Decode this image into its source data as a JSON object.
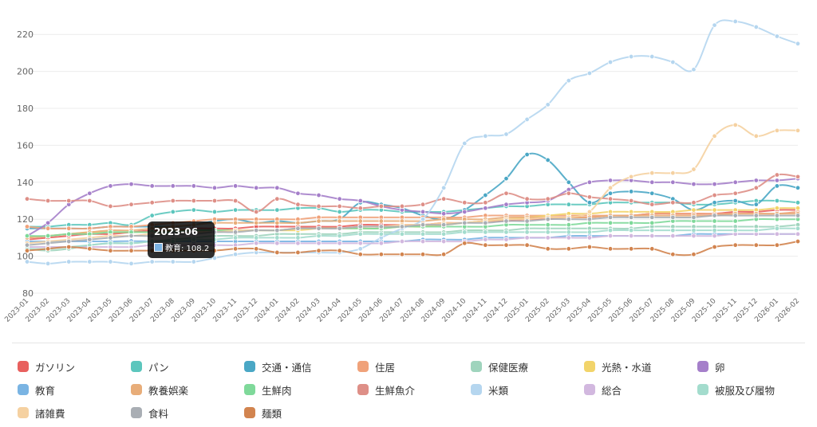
{
  "chart_data": {
    "type": "line",
    "title": "",
    "xlabel": "",
    "ylabel": "",
    "ylim": [
      80,
      230
    ],
    "yticks": [
      80,
      100,
      120,
      140,
      160,
      180,
      200,
      220
    ],
    "grid": true,
    "legend_position": "bottom",
    "x": [
      "2023-01",
      "2023-02",
      "2023-03",
      "2023-04",
      "2023-05",
      "2023-06",
      "2023-07",
      "2023-08",
      "2023-09",
      "2023-10",
      "2023-11",
      "2023-12",
      "2024-01",
      "2024-02",
      "2024-03",
      "2024-04",
      "2024-05",
      "2024-06",
      "2024-07",
      "2024-08",
      "2024-09",
      "2024-10",
      "2024-11",
      "2024-12",
      "2025-01",
      "2025-02",
      "2025-03",
      "2025-04",
      "2025-05",
      "2025-06",
      "2025-07",
      "2025-08",
      "2025-09",
      "2025-10",
      "2025-11",
      "2025-12",
      "2026-01",
      "2026-02"
    ],
    "series": [
      {
        "name": "ガソリン",
        "color": "#e8605e",
        "values": [
          109,
          110,
          111,
          112,
          112,
          113,
          114,
          114,
          115,
          115,
          115,
          116,
          116,
          116,
          116,
          116,
          117,
          117,
          117,
          117,
          118,
          118,
          119,
          119,
          120,
          120,
          121,
          121,
          122,
          122,
          123,
          123,
          123,
          123,
          124,
          124,
          125,
          125
        ]
      },
      {
        "name": "パン",
        "color": "#5cc6bd",
        "values": [
          116,
          116,
          117,
          117,
          118,
          117,
          122,
          124,
          125,
          124,
          125,
          125,
          125,
          126,
          126,
          124,
          125,
          125,
          124,
          124,
          124,
          125,
          126,
          127,
          127,
          128,
          128,
          128,
          129,
          129,
          129,
          129,
          128,
          128,
          129,
          130,
          130,
          129
        ]
      },
      {
        "name": "交通・通信",
        "color": "#4aa7c5",
        "values": [
          115,
          115,
          115,
          115,
          116,
          116,
          116,
          116,
          117,
          119,
          120,
          118,
          119,
          118,
          119,
          120,
          129,
          128,
          126,
          122,
          120,
          125,
          133,
          142,
          155,
          152,
          140,
          129,
          134,
          135,
          134,
          131,
          125,
          129,
          130,
          128,
          138,
          137
        ]
      },
      {
        "name": "住居",
        "color": "#f0a27a",
        "values": [
          116,
          115,
          115,
          115,
          116,
          116,
          117,
          118,
          119,
          120,
          120,
          120,
          120,
          120,
          121,
          121,
          121,
          121,
          121,
          121,
          121,
          121,
          122,
          122,
          122,
          122,
          122,
          122,
          122,
          122,
          123,
          123,
          123,
          123,
          123,
          123,
          123,
          124
        ]
      },
      {
        "name": "保健医療",
        "color": "#9fd4bd",
        "values": [
          104,
          103,
          104,
          106,
          107,
          107,
          108,
          109,
          110,
          111,
          111,
          111,
          112,
          112,
          112,
          112,
          113,
          113,
          113,
          113,
          113,
          114,
          114,
          114,
          115,
          115,
          115,
          115,
          115,
          115,
          116,
          116,
          116,
          116,
          116,
          116,
          116,
          117
        ]
      },
      {
        "name": "光熱・水道",
        "color": "#f2d46a",
        "values": [
          110,
          111,
          112,
          113,
          113,
          113,
          113,
          114,
          114,
          114,
          114,
          114,
          114,
          114,
          115,
          115,
          115,
          115,
          116,
          116,
          117,
          118,
          119,
          120,
          121,
          122,
          123,
          123,
          124,
          124,
          124,
          124,
          125,
          125,
          125,
          125,
          126,
          126
        ]
      },
      {
        "name": "卵",
        "color": "#a57fca",
        "values": [
          111,
          118,
          128,
          134,
          138,
          139,
          138,
          138,
          138,
          137,
          138,
          137,
          137,
          134,
          133,
          131,
          130,
          127,
          125,
          124,
          123,
          124,
          126,
          128,
          129,
          130,
          136,
          140,
          141,
          141,
          140,
          140,
          139,
          139,
          140,
          141,
          141,
          142
        ]
      },
      {
        "name": "教育",
        "color": "#7ab4e3",
        "values": [
          108,
          108,
          108,
          108,
          108,
          108.2,
          108,
          108,
          108,
          108,
          108,
          108,
          108,
          108,
          108,
          108,
          108,
          108,
          108,
          109,
          109,
          109,
          110,
          110,
          110,
          110,
          111,
          111,
          111,
          111,
          111,
          111,
          112,
          112,
          112,
          112,
          112,
          112
        ]
      },
      {
        "name": "教養娯楽",
        "color": "#e8ad79",
        "values": [
          110,
          111,
          112,
          113,
          114,
          114,
          115,
          116,
          117,
          118,
          118,
          118,
          118,
          118,
          119,
          119,
          119,
          119,
          119,
          119,
          120,
          120,
          120,
          121,
          121,
          121,
          121,
          121,
          122,
          122,
          122,
          122,
          122,
          122,
          123,
          123,
          123,
          123
        ]
      },
      {
        "name": "生鮮肉",
        "color": "#7fd99a",
        "values": [
          111,
          111,
          112,
          112,
          113,
          113,
          113,
          113,
          114,
          114,
          114,
          114,
          114,
          115,
          115,
          115,
          115,
          115,
          116,
          116,
          116,
          116,
          116,
          117,
          117,
          117,
          117,
          118,
          118,
          118,
          118,
          119,
          119,
          119,
          119,
          120,
          120,
          120
        ]
      },
      {
        "name": "生鮮魚介",
        "color": "#de8f87",
        "values": [
          131,
          130,
          130,
          130,
          127,
          128,
          129,
          130,
          130,
          130,
          130,
          124,
          131,
          128,
          127,
          127,
          126,
          127,
          127,
          128,
          131,
          129,
          129,
          134,
          131,
          131,
          134,
          132,
          131,
          130,
          128,
          129,
          129,
          133,
          134,
          137,
          144,
          143
        ]
      },
      {
        "name": "米類",
        "color": "#b5d6ef",
        "values": [
          97,
          96,
          97,
          97,
          97,
          96,
          97,
          97,
          97,
          99,
          101,
          102,
          102,
          102,
          102,
          102,
          104,
          110,
          115,
          120,
          137,
          161,
          165,
          166,
          174,
          182,
          195,
          199,
          205,
          208,
          208,
          205,
          201,
          225,
          227,
          224,
          219,
          215
        ]
      },
      {
        "name": "総合",
        "color": "#d2b8df",
        "values": [
          105,
          105,
          105,
          105,
          105,
          105,
          106,
          106,
          106,
          106,
          106,
          107,
          107,
          107,
          107,
          107,
          107,
          107,
          108,
          108,
          108,
          108,
          109,
          109,
          110,
          110,
          110,
          110,
          111,
          111,
          111,
          111,
          111,
          111,
          112,
          112,
          112,
          112
        ]
      },
      {
        "name": "被服及び履物",
        "color": "#a3dccd",
        "values": [
          104,
          104,
          105,
          106,
          107,
          107,
          108,
          108,
          109,
          109,
          110,
          110,
          110,
          110,
          111,
          111,
          112,
          112,
          112,
          112,
          112,
          113,
          113,
          113,
          113,
          113,
          113,
          113,
          114,
          114,
          114,
          114,
          114,
          114,
          114,
          114,
          115,
          115
        ]
      },
      {
        "name": "諸雑費",
        "color": "#f5d1a1",
        "values": [
          107,
          108,
          109,
          110,
          111,
          111,
          112,
          112,
          113,
          113,
          114,
          114,
          114,
          115,
          115,
          115,
          116,
          116,
          117,
          117,
          118,
          118,
          119,
          120,
          120,
          121,
          121,
          124,
          137,
          143,
          145,
          145,
          147,
          165,
          171,
          165,
          168,
          168
        ]
      },
      {
        "name": "食料",
        "color": "#a9aeb4",
        "values": [
          106,
          107,
          108,
          109,
          110,
          111,
          111,
          112,
          112,
          113,
          113,
          114,
          114,
          115,
          115,
          115,
          116,
          116,
          116,
          117,
          117,
          118,
          118,
          119,
          119,
          120,
          120,
          120,
          121,
          121,
          121,
          121,
          121,
          122,
          122,
          122,
          122,
          122
        ]
      },
      {
        "name": "麺類",
        "color": "#d2844f",
        "values": [
          103,
          104,
          105,
          104,
          103,
          103,
          103,
          103,
          103,
          103,
          104,
          104,
          102,
          102,
          103,
          103,
          101,
          101,
          101,
          101,
          101,
          107,
          106,
          106,
          106,
          104,
          104,
          105,
          104,
          104,
          104,
          101,
          101,
          105,
          106,
          106,
          106,
          108
        ]
      }
    ]
  },
  "tooltip": {
    "title": "2023-06",
    "label": "教育: 108.2",
    "color": "#7ab4e3"
  }
}
